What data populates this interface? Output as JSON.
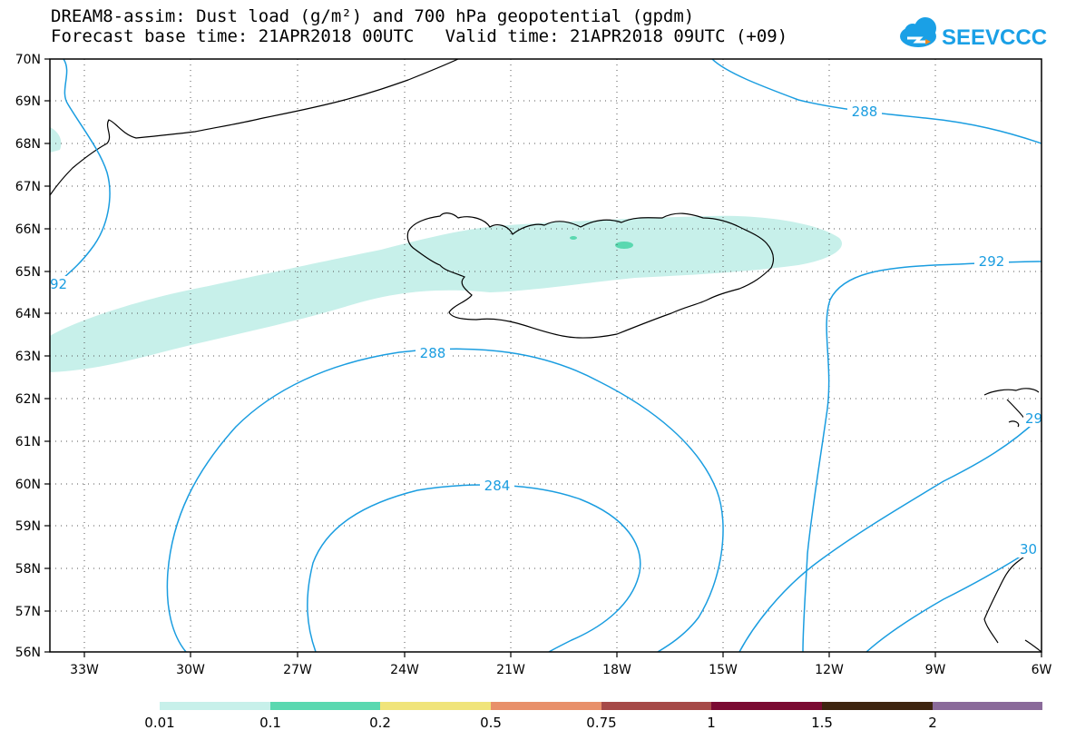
{
  "title_line1": "DREAM8-assim: Dust load (g/m²) and 700 hPa geopotential (gpdm)",
  "title_line2": "Forecast base time: 21APR2018 00UTC   Valid time: 21APR2018 09UTC (+09)",
  "logo_text": "SEEVCCC",
  "lat_labels": [
    "70N",
    "69N",
    "68N",
    "67N",
    "66N",
    "65N",
    "64N",
    "63N",
    "62N",
    "61N",
    "60N",
    "59N",
    "58N",
    "57N",
    "56N"
  ],
  "lon_labels": [
    "33W",
    "30W",
    "27W",
    "24W",
    "21W",
    "18W",
    "15W",
    "12W",
    "9W",
    "6W"
  ],
  "contour_labels": [
    "288",
    "292",
    "288",
    "284",
    "29",
    "30",
    "92"
  ],
  "colorbar": {
    "colors": [
      "#c7f0ea",
      "#5ad8b0",
      "#f0e47a",
      "#e8906a",
      "#a64a48",
      "#7a0a32",
      "#3e2410",
      "#8a6a9a"
    ],
    "labels": [
      "0.01",
      "0.1",
      "0.2",
      "0.5",
      "0.75",
      "1",
      "1.5",
      "2"
    ]
  },
  "colors": {
    "contour": "#1a9de0",
    "dust_low": "#c7f0ea",
    "dust_mid": "#5ad8b0",
    "coast": "#000000"
  }
}
